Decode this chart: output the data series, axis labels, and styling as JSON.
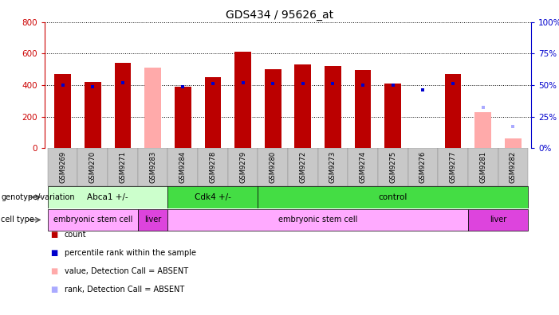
{
  "title": "GDS434 / 95626_at",
  "samples": [
    "GSM9269",
    "GSM9270",
    "GSM9271",
    "GSM9283",
    "GSM9284",
    "GSM9278",
    "GSM9279",
    "GSM9280",
    "GSM9272",
    "GSM9273",
    "GSM9274",
    "GSM9275",
    "GSM9276",
    "GSM9277",
    "GSM9281",
    "GSM9282"
  ],
  "count_values": [
    470,
    420,
    540,
    null,
    390,
    450,
    610,
    500,
    530,
    520,
    495,
    410,
    null,
    470,
    null,
    null
  ],
  "rank_values": [
    50,
    49,
    52,
    null,
    49,
    51,
    52,
    51,
    51,
    51,
    50,
    50,
    46,
    51,
    null,
    null
  ],
  "absent_count": [
    null,
    null,
    null,
    510,
    null,
    null,
    null,
    null,
    null,
    null,
    null,
    null,
    null,
    null,
    230,
    60
  ],
  "absent_rank": [
    null,
    null,
    null,
    null,
    null,
    null,
    null,
    null,
    null,
    null,
    null,
    null,
    null,
    null,
    32,
    17
  ],
  "ylim_left": [
    0,
    800
  ],
  "ylim_right": [
    0,
    100
  ],
  "yticks_left": [
    0,
    200,
    400,
    600,
    800
  ],
  "yticks_right": [
    0,
    25,
    50,
    75,
    100
  ],
  "count_color": "#bb0000",
  "rank_color": "#0000cc",
  "absent_count_color": "#ffaaaa",
  "absent_rank_color": "#aaaaff",
  "genotype_groups": [
    {
      "label": "Abca1 +/-",
      "start": 0,
      "end": 4,
      "color": "#ccffcc"
    },
    {
      "label": "Cdk4 +/-",
      "start": 4,
      "end": 7,
      "color": "#44dd44"
    },
    {
      "label": "control",
      "start": 7,
      "end": 16,
      "color": "#44dd44"
    }
  ],
  "celltype_groups": [
    {
      "label": "embryonic stem cell",
      "start": 0,
      "end": 3,
      "color": "#ffaaff"
    },
    {
      "label": "liver",
      "start": 3,
      "end": 4,
      "color": "#dd44dd"
    },
    {
      "label": "embryonic stem cell",
      "start": 4,
      "end": 14,
      "color": "#ffaaff"
    },
    {
      "label": "liver",
      "start": 14,
      "end": 16,
      "color": "#dd44dd"
    }
  ],
  "legend_items": [
    {
      "label": "count",
      "color": "#bb0000"
    },
    {
      "label": "percentile rank within the sample",
      "color": "#0000cc"
    },
    {
      "label": "value, Detection Call = ABSENT",
      "color": "#ffaaaa"
    },
    {
      "label": "rank, Detection Call = ABSENT",
      "color": "#aaaaff"
    }
  ],
  "background_color": "#ffffff",
  "grid_color": "#000000",
  "axis_color_left": "#cc0000",
  "axis_color_right": "#0000cc",
  "tick_area_color": "#c8c8c8",
  "fig_width": 7.01,
  "fig_height": 3.96,
  "dpi": 100
}
